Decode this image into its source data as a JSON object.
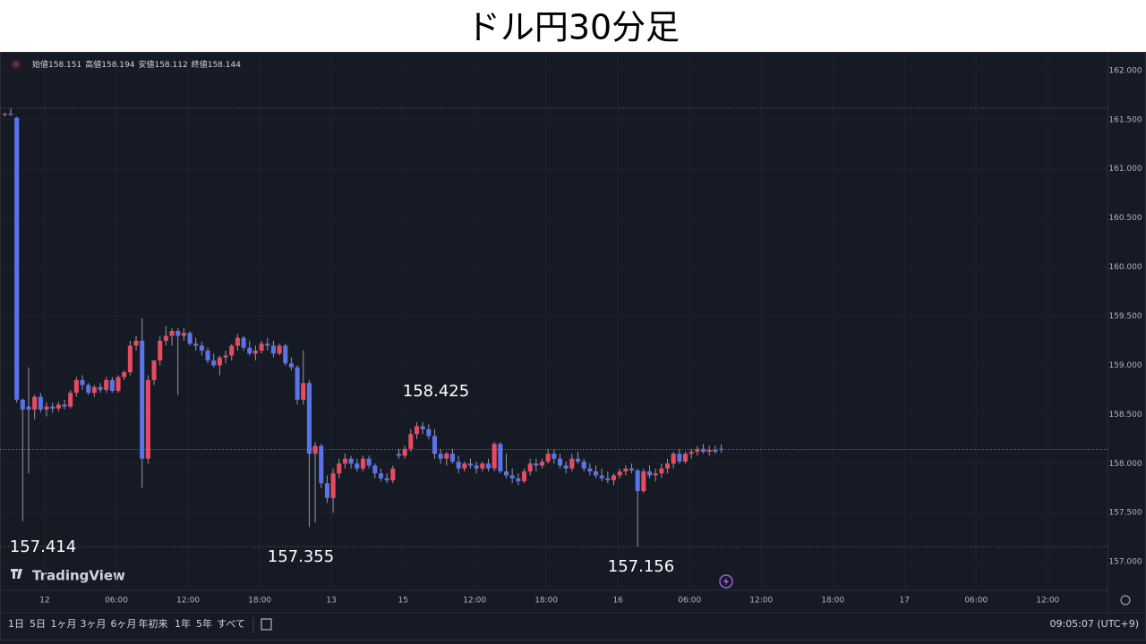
{
  "header": {
    "title": "ドル円30分足"
  },
  "chart_data": {
    "type": "candlestick",
    "open": [
      161.55,
      161.56,
      161.52,
      158.65,
      158.58,
      158.55,
      158.68,
      158.55,
      158.58,
      158.56,
      158.6,
      158.58,
      158.72,
      158.85,
      158.8,
      158.72,
      158.78,
      158.75,
      158.85,
      158.74,
      158.88,
      158.93,
      159.2,
      159.25,
      158.05,
      158.85,
      159.05,
      159.25,
      159.3,
      159.35,
      159.3,
      159.33,
      159.22,
      159.2,
      159.15,
      159.05,
      159.0,
      159.08,
      159.1,
      159.2,
      159.28,
      159.18,
      159.12,
      159.15,
      159.22,
      159.2,
      159.12,
      159.2,
      159.02,
      158.98,
      158.65,
      158.82,
      158.1,
      158.18,
      157.8,
      157.65,
      157.9,
      158.0,
      158.05,
      158.0,
      157.95,
      158.05,
      157.98,
      157.9,
      157.85,
      157.83,
      158.1,
      158.08,
      158.15,
      158.3,
      158.38,
      158.35,
      158.28,
      158.1,
      158.05,
      158.1,
      158.02,
      157.95,
      158.0,
      157.98,
      157.95,
      158.0,
      157.95,
      158.2,
      157.92,
      157.88,
      157.85,
      157.82,
      157.92,
      158.0,
      157.98,
      158.02,
      158.1,
      158.05,
      157.98,
      157.95,
      158.05,
      158.02,
      157.95,
      157.92,
      157.88,
      157.85,
      157.83,
      157.88,
      157.92,
      157.95,
      157.93,
      157.72,
      157.92,
      157.88,
      157.9,
      157.95,
      158.0,
      158.1,
      158.02,
      158.1,
      158.12,
      158.15,
      158.12,
      158.14,
      158.151
    ],
    "high": [
      161.57,
      161.615,
      161.53,
      158.66,
      158.98,
      158.7,
      158.72,
      158.62,
      158.62,
      158.63,
      158.65,
      158.75,
      158.88,
      158.9,
      158.82,
      158.8,
      158.82,
      158.88,
      158.88,
      158.9,
      158.95,
      159.25,
      159.3,
      159.48,
      158.9,
      159.05,
      159.3,
      159.4,
      159.38,
      159.38,
      159.38,
      159.35,
      159.28,
      159.24,
      159.18,
      159.12,
      159.1,
      159.15,
      159.22,
      159.32,
      159.3,
      159.25,
      159.2,
      159.25,
      159.28,
      159.25,
      159.22,
      159.22,
      159.08,
      159.0,
      159.15,
      158.85,
      158.22,
      158.2,
      157.88,
      157.95,
      158.05,
      158.1,
      158.08,
      158.05,
      158.08,
      158.08,
      158.0,
      157.95,
      157.9,
      157.98,
      158.15,
      158.18,
      158.35,
      158.42,
      158.425,
      158.4,
      158.35,
      158.15,
      158.12,
      158.15,
      158.08,
      158.02,
      158.05,
      158.02,
      158.02,
      158.05,
      158.22,
      158.22,
      158.1,
      157.95,
      157.9,
      157.95,
      158.05,
      158.05,
      158.05,
      158.15,
      158.15,
      158.1,
      158.02,
      158.1,
      158.12,
      158.05,
      158.0,
      157.98,
      157.95,
      157.92,
      157.9,
      157.95,
      157.98,
      158.0,
      157.95,
      157.95,
      157.98,
      157.95,
      158.0,
      158.05,
      158.12,
      158.15,
      158.12,
      158.15,
      158.18,
      158.2,
      158.18,
      158.18,
      158.194
    ],
    "low": [
      161.53,
      161.54,
      158.62,
      157.414,
      157.9,
      158.45,
      158.52,
      158.48,
      158.52,
      158.53,
      158.55,
      158.56,
      158.68,
      158.75,
      158.7,
      158.68,
      158.72,
      158.72,
      158.72,
      158.72,
      158.85,
      158.9,
      159.15,
      157.75,
      158.0,
      158.8,
      159.0,
      159.2,
      159.2,
      158.7,
      159.25,
      159.2,
      159.15,
      159.1,
      159.02,
      158.98,
      158.9,
      159.02,
      159.05,
      159.15,
      159.15,
      159.1,
      159.05,
      159.12,
      159.15,
      159.08,
      159.1,
      159.0,
      158.95,
      158.6,
      158.6,
      157.355,
      157.4,
      157.75,
      157.6,
      157.5,
      157.85,
      157.95,
      157.95,
      157.92,
      157.92,
      157.95,
      157.85,
      157.82,
      157.8,
      157.8,
      158.05,
      158.05,
      158.12,
      158.25,
      158.3,
      158.25,
      158.05,
      158.0,
      157.98,
      158.0,
      157.9,
      157.92,
      157.95,
      157.9,
      157.92,
      157.92,
      157.92,
      157.9,
      157.85,
      157.8,
      157.78,
      157.8,
      157.88,
      157.92,
      157.95,
      158.0,
      158.0,
      157.95,
      157.9,
      157.92,
      158.0,
      157.92,
      157.88,
      157.85,
      157.82,
      157.8,
      157.78,
      157.85,
      157.88,
      157.9,
      157.156,
      157.7,
      157.85,
      157.82,
      157.85,
      157.9,
      157.95,
      158.0,
      158.0,
      158.05,
      158.08,
      158.1,
      158.08,
      158.1,
      158.112
    ],
    "close": [
      161.56,
      161.55,
      158.65,
      158.55,
      158.55,
      158.68,
      158.55,
      158.58,
      158.56,
      158.6,
      158.58,
      158.72,
      158.85,
      158.8,
      158.72,
      158.78,
      158.75,
      158.85,
      158.74,
      158.88,
      158.93,
      159.2,
      159.25,
      158.05,
      158.85,
      159.05,
      159.25,
      159.3,
      159.35,
      159.3,
      159.33,
      159.22,
      159.2,
      159.15,
      159.05,
      159.0,
      159.08,
      159.1,
      159.2,
      159.28,
      159.18,
      159.12,
      159.15,
      159.22,
      159.2,
      159.12,
      159.2,
      159.02,
      158.98,
      158.65,
      158.82,
      158.1,
      158.18,
      157.8,
      157.65,
      157.9,
      158.0,
      158.05,
      158.0,
      157.95,
      158.05,
      157.98,
      157.9,
      157.85,
      157.83,
      157.95,
      158.08,
      158.15,
      158.3,
      158.38,
      158.35,
      158.28,
      158.1,
      158.05,
      158.1,
      158.02,
      157.95,
      158.0,
      157.98,
      157.95,
      158.0,
      157.95,
      158.2,
      157.92,
      157.88,
      157.85,
      157.82,
      157.92,
      158.0,
      157.98,
      158.02,
      158.1,
      158.05,
      157.98,
      157.95,
      158.05,
      158.02,
      157.95,
      157.92,
      157.88,
      157.85,
      157.83,
      157.88,
      157.92,
      157.95,
      157.93,
      157.72,
      157.92,
      157.88,
      157.9,
      157.95,
      158.0,
      158.1,
      158.02,
      158.1,
      158.12,
      158.15,
      158.12,
      158.14,
      158.12,
      158.144
    ],
    "up_color": "#e84a5f",
    "down_color": "#5b73e8",
    "wick_color": "#9598a1",
    "current_color": "#9c5fd6",
    "ohlc_labels": [
      "始値",
      "高値",
      "安値",
      "終値"
    ],
    "ylim": [
      156.71,
      162.19
    ],
    "yticks": [
      {
        "value": 157,
        "label": "157.000"
      },
      {
        "value": 157.5,
        "label": "157.500"
      },
      {
        "value": 158,
        "label": "158.000"
      },
      {
        "value": 158.5,
        "label": "158.500"
      },
      {
        "value": 159,
        "label": "159.000"
      },
      {
        "value": 159.5,
        "label": "159.500"
      },
      {
        "value": 160,
        "label": "160.000"
      },
      {
        "value": 160.5,
        "label": "160.500"
      },
      {
        "value": 161,
        "label": "161.000"
      },
      {
        "value": 161.5,
        "label": "161.500"
      },
      {
        "value": 162,
        "label": "162.000"
      }
    ],
    "xlim": [
      -0.5,
      184.7
    ],
    "xticks": [
      {
        "value": 6.7,
        "label": "12"
      },
      {
        "value": 18.7,
        "label": "06:00"
      },
      {
        "value": 30.7,
        "label": "12:00"
      },
      {
        "value": 42.7,
        "label": "18:00"
      },
      {
        "value": 54.7,
        "label": "13"
      },
      {
        "value": 66.7,
        "label": "15"
      },
      {
        "value": 78.7,
        "label": "12:00"
      },
      {
        "value": 90.7,
        "label": "18:00"
      },
      {
        "value": 102.7,
        "label": "16"
      },
      {
        "value": 114.7,
        "label": "06:00"
      },
      {
        "value": 126.7,
        "label": "12:00"
      },
      {
        "value": 138.7,
        "label": "18:00"
      },
      {
        "value": 150.7,
        "label": "17"
      },
      {
        "value": 162.7,
        "label": "06:00"
      },
      {
        "value": 174.7,
        "label": "12:00"
      }
    ],
    "grid": true
  },
  "watermark": "TradingView",
  "toolbar": {
    "ranges": [
      "1日",
      "5日",
      "1ヶ月",
      "3ヶ月",
      "6ヶ月",
      "年初来",
      "1年",
      "5年",
      "すべて"
    ],
    "clock": "09:05:07 (UTC+9)"
  }
}
